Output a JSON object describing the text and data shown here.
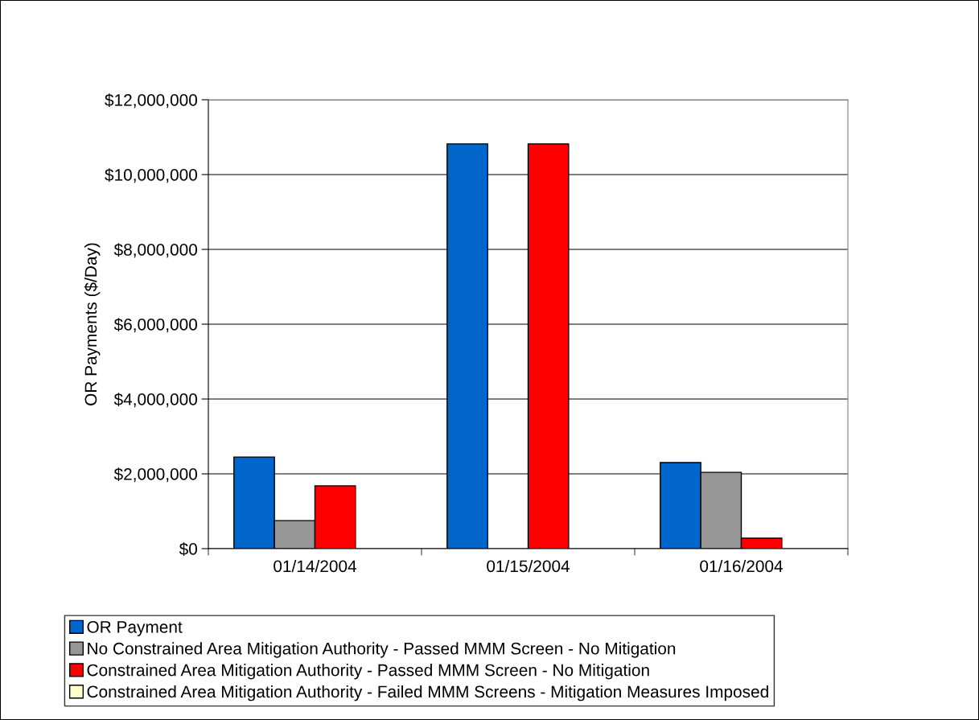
{
  "chart_data": {
    "type": "bar",
    "ylabel": "OR Payments ($/Day)",
    "categories": [
      "01/14/2004",
      "01/15/2004",
      "01/16/2004"
    ],
    "series": [
      {
        "name": "OR Payment",
        "color": "#0066cc",
        "values": [
          2450000,
          10820000,
          2300000
        ]
      },
      {
        "name": "No Constrained Area Mitigation Authority - Passed MMM Screen - No Mitigation",
        "color": "#969696",
        "values": [
          750000,
          0,
          2040000
        ]
      },
      {
        "name": "Constrained Area Mitigation Authority - Passed MMM Screen - No Mitigation",
        "color": "#ff0000",
        "values": [
          1680000,
          10820000,
          280000
        ]
      },
      {
        "name": "Constrained Area Mitigation Authority - Failed MMM Screens - Mitigation Measures Imposed",
        "color": "#ffffcc",
        "values": [
          0,
          0,
          0
        ]
      }
    ],
    "ylim": [
      0,
      12000000
    ],
    "yticks": [
      {
        "value": 0,
        "label": "$0"
      },
      {
        "value": 2000000,
        "label": "$2,000,000"
      },
      {
        "value": 4000000,
        "label": "$4,000,000"
      },
      {
        "value": 6000000,
        "label": "$6,000,000"
      },
      {
        "value": 8000000,
        "label": "$8,000,000"
      },
      {
        "value": 10000000,
        "label": "$10,000,000"
      },
      {
        "value": 12000000,
        "label": "$12,000,000"
      }
    ],
    "grid": "y",
    "legend": "bottom"
  }
}
